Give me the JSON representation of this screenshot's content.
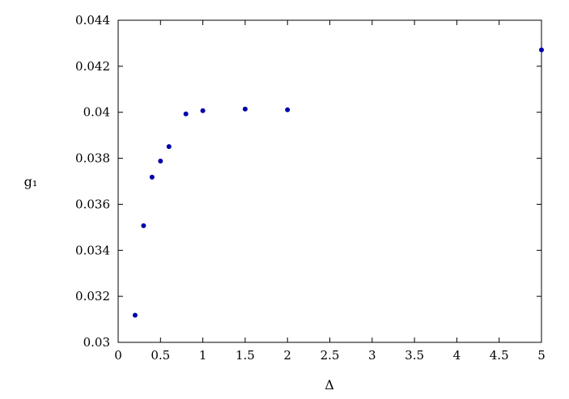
{
  "chart_data": {
    "type": "scatter",
    "xlabel": "Δ",
    "ylabel": "g₁",
    "xlim": [
      0,
      5
    ],
    "ylim": [
      0.03,
      0.044
    ],
    "grid": false,
    "x_ticks": [
      0,
      0.5,
      1,
      1.5,
      2,
      2.5,
      3,
      3.5,
      4,
      4.5,
      5
    ],
    "x_tick_labels": [
      "0",
      "0.5",
      "1",
      "1.5",
      "2",
      "2.5",
      "3",
      "3.5",
      "4",
      "4.5",
      "5"
    ],
    "y_ticks": [
      0.03,
      0.032,
      0.034,
      0.036,
      0.038,
      0.04,
      0.042,
      0.044
    ],
    "y_tick_labels": [
      "0.03",
      "0.032",
      "0.034",
      "0.036",
      "0.038",
      "0.04",
      "0.042",
      "0.044"
    ],
    "series": [
      {
        "color": "#0000aa",
        "points": [
          {
            "x": 0.2,
            "y": 0.03118
          },
          {
            "x": 0.3,
            "y": 0.03507
          },
          {
            "x": 0.4,
            "y": 0.03718
          },
          {
            "x": 0.5,
            "y": 0.03788
          },
          {
            "x": 0.6,
            "y": 0.03851
          },
          {
            "x": 0.8,
            "y": 0.03993
          },
          {
            "x": 1.0,
            "y": 0.04007
          },
          {
            "x": 1.5,
            "y": 0.04014
          },
          {
            "x": 2.0,
            "y": 0.04011
          },
          {
            "x": 5.0,
            "y": 0.04271
          }
        ]
      }
    ]
  }
}
